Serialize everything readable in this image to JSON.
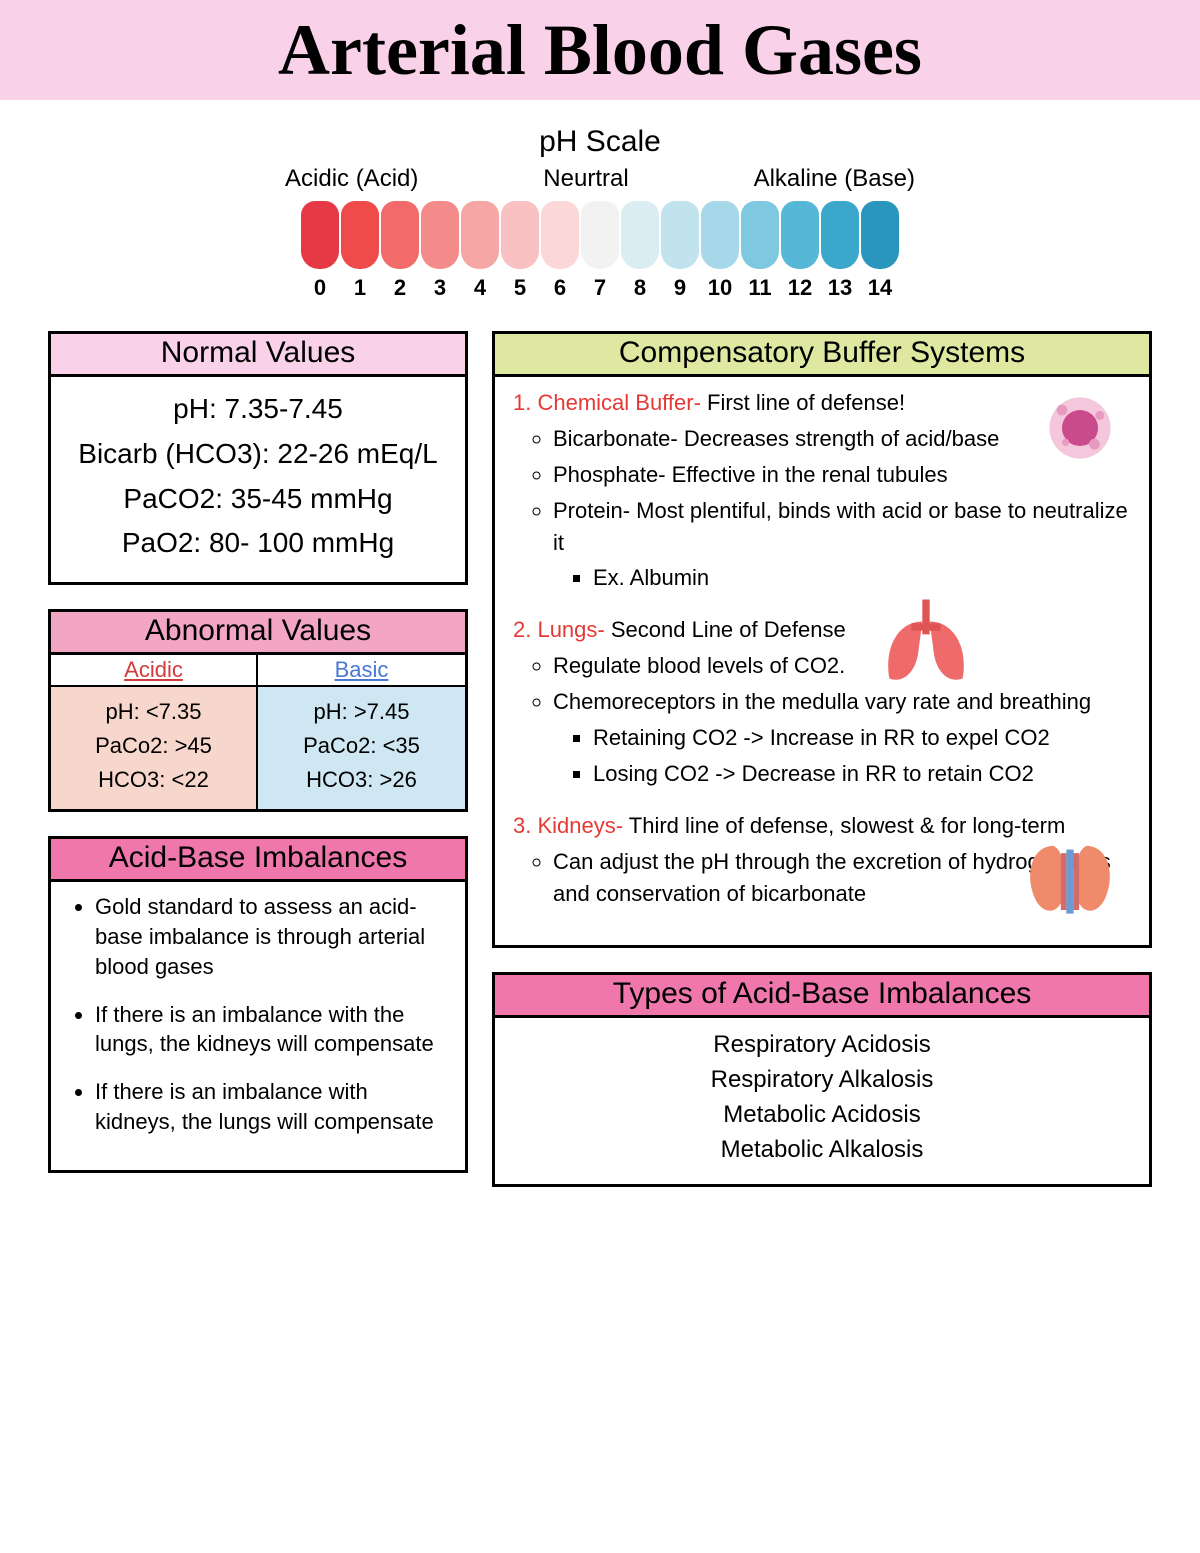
{
  "title": "Arterial Blood Gases",
  "ph": {
    "title": "pH Scale",
    "labels": {
      "left": "Acidic (Acid)",
      "mid": "Neurtral",
      "right": "Alkaline (Base)"
    },
    "colors": [
      "#e63946",
      "#ef4b4b",
      "#f26a6a",
      "#f48b8b",
      "#f7a6a6",
      "#f9c1c1",
      "#fbd7d7",
      "#f2f2f2",
      "#d9edf3",
      "#c1e3ee",
      "#a6d8e9",
      "#7fc9e0",
      "#56b8d6",
      "#3aa7cb",
      "#2b96bd"
    ],
    "numbers": [
      "0",
      "1",
      "2",
      "3",
      "4",
      "5",
      "6",
      "7",
      "8",
      "9",
      "10",
      "11",
      "12",
      "13",
      "14"
    ]
  },
  "normal": {
    "header": "Normal Values",
    "header_bg": "#f9d1e9",
    "rows": [
      "pH: 7.35-7.45",
      "Bicarb (HCO3): 22-26 mEq/L",
      "PaCO2: 35-45 mmHg",
      "PaO2: 80- 100 mmHg"
    ]
  },
  "abnormal": {
    "header": "Abnormal Values",
    "header_bg": "#f3a6c4",
    "acidic": {
      "label": "Acidic",
      "label_color": "#d23b3b",
      "bg": "#f7d6cc",
      "rows": [
        "pH: <7.35",
        "PaCo2: >45",
        "HCO3: <22"
      ]
    },
    "basic": {
      "label": "Basic",
      "label_color": "#4a77d4",
      "bg": "#cfe7f2",
      "rows": [
        "pH: >7.45",
        "PaCo2: <35",
        "HCO3: >26"
      ]
    }
  },
  "imbalances": {
    "header": "Acid-Base Imbalances",
    "header_bg": "#ef77ab",
    "bullets": [
      "Gold standard to assess an acid-base imbalance is through arterial blood gases",
      "If there is an imbalance with the lungs, the kidneys will compensate",
      "If there is an imbalance with kidneys, the lungs will compensate"
    ]
  },
  "buffers": {
    "header": "Compensatory Buffer Systems",
    "header_bg": "#dfe8a1",
    "items": [
      {
        "num": "1.",
        "title": "Chemical Buffer- ",
        "title_color": "#e53935",
        "desc": "First line of defense!",
        "sub": [
          "Bicarbonate- Decreases strength of acid/base",
          "Phosphate- Effective in the renal tubules",
          "Protein- Most plentiful, binds with acid or base to neutralize it"
        ],
        "subsub": [
          "Ex. Albumin"
        ],
        "icon": "cell"
      },
      {
        "num": "2.",
        "title": "Lungs- ",
        "title_color": "#e53935",
        "desc": "Second Line of Defense",
        "sub": [
          "Regulate blood levels of CO2.",
          "Chemoreceptors in the medulla vary rate and breathing"
        ],
        "subsub": [
          "Retaining CO2 -> Increase in RR to expel CO2",
          "Losing CO2 -> Decrease in RR to retain CO2"
        ],
        "icon": "lungs"
      },
      {
        "num": "3.",
        "title": "Kidneys- ",
        "title_color": "#e53935",
        "desc": "Third line of defense, slowest & for long-term",
        "sub": [
          "Can adjust the pH through the excretion of hydrogen ions and conservation of bicarbonate"
        ],
        "subsub": [],
        "icon": "kidneys"
      }
    ]
  },
  "types": {
    "header": "Types of Acid-Base Imbalances",
    "header_bg": "#ef77ab",
    "rows": [
      "Respiratory Acidosis",
      "Respiratory Alkalosis",
      "Metabolic Acidosis",
      "Metabolic Alkalosis"
    ]
  }
}
